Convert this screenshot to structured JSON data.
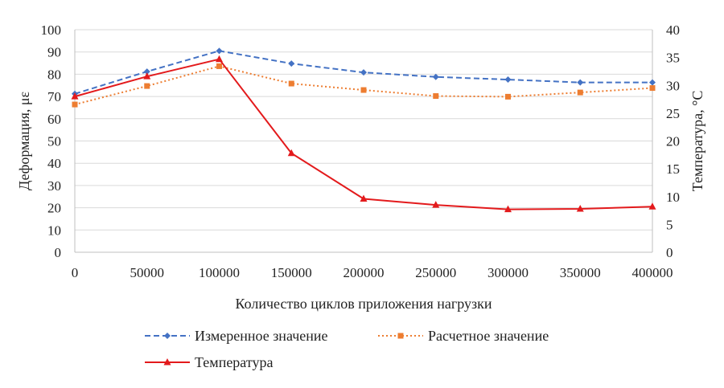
{
  "chart_data": {
    "type": "line",
    "title": "",
    "xlabel": "Количество циклов приложения нагрузки",
    "ylabel": "Деформация, με",
    "y2label": "Температура, °С",
    "x": [
      0,
      50000,
      100000,
      150000,
      200000,
      250000,
      300000,
      350000,
      400000
    ],
    "x_tick_labels": [
      "0",
      "50000",
      "100000",
      "150000",
      "200000",
      "250000",
      "300000",
      "350000",
      "400000"
    ],
    "ylim": [
      0,
      100
    ],
    "y_ticks": [
      "0",
      "10",
      "20",
      "30",
      "40",
      "50",
      "60",
      "70",
      "80",
      "90",
      "100"
    ],
    "y2lim": [
      0,
      40
    ],
    "y2_ticks": [
      "0",
      "5",
      "10",
      "15",
      "20",
      "25",
      "30",
      "35",
      "40"
    ],
    "grid": "horizontal",
    "legend_position": "bottom",
    "series": [
      {
        "name": "Измеренное значение",
        "axis": "left",
        "style": "dashed",
        "marker": "diamond",
        "color": "#4472C4",
        "values": [
          71.2,
          81.2,
          90.5,
          84.8,
          80.8,
          78.8,
          77.6,
          76.3,
          76.3
        ]
      },
      {
        "name": "Расчетное значение",
        "axis": "left",
        "style": "dotted",
        "marker": "square",
        "color": "#ED7D31",
        "values": [
          66.4,
          74.7,
          83.6,
          75.8,
          72.9,
          70.2,
          69.9,
          71.8,
          73.8
        ]
      },
      {
        "name": "Температура",
        "axis": "right",
        "style": "solid",
        "marker": "triangle",
        "color": "#E31A1C",
        "values": [
          28.0,
          31.6,
          34.7,
          17.8,
          9.6,
          8.5,
          7.7,
          7.8,
          8.2
        ]
      }
    ]
  }
}
